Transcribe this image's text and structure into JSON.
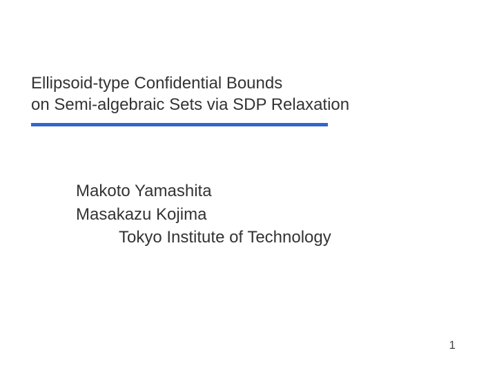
{
  "slide": {
    "title_line1": "Ellipsoid-type Confidential Bounds",
    "title_line2": "on Semi-algebraic Sets via SDP Relaxation",
    "author1": "Makoto Yamashita",
    "author2": "Masakazu Kojima",
    "affiliation": "Tokyo Institute of Technology",
    "page_number": "1"
  },
  "styling": {
    "background_color": "#ffffff",
    "title_color": "#333333",
    "title_fontsize": 24,
    "author_fontsize": 24,
    "divider_color": "#3366cc",
    "divider_width": 430,
    "divider_height": 5,
    "page_number_fontsize": 17,
    "font_family": "Verdana"
  }
}
